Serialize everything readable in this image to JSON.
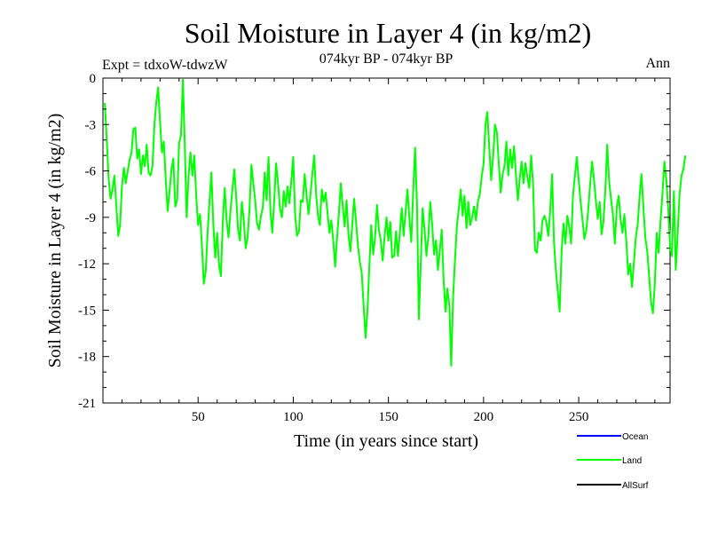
{
  "chart_data": {
    "type": "line",
    "title": "Soil Moisture in Layer 4 (in kg/m2)",
    "subtitle": "074kyr BP - 074kyr BP",
    "experiment": "Expt = tdxoW-tdwzW",
    "period": "Ann",
    "xlabel": "Time (in years since start)",
    "ylabel": "Soil Moisture in Layer 4 (in kg/m2)",
    "xlim": [
      0,
      298
    ],
    "ylim": [
      -21,
      0
    ],
    "xticks": [
      50,
      100,
      150,
      200,
      250
    ],
    "yticks": [
      0,
      -3,
      -6,
      -9,
      -12,
      -15,
      -18,
      -21
    ],
    "grid": false,
    "legend_position": "bottom-right",
    "legend": [
      {
        "name": "Ocean",
        "color": "#0000ff"
      },
      {
        "name": "Land",
        "color": "#00ff00"
      },
      {
        "name": "AllSurf",
        "color": "#000000"
      }
    ],
    "series": [
      {
        "name": "Land",
        "color": "#00ff00",
        "x_start": 1,
        "x_step": 1,
        "values": [
          -1.6,
          -4.0,
          -6.5,
          -7.8,
          -7.2,
          -6.3,
          -8.2,
          -10.2,
          -9.5,
          -7.0,
          -5.8,
          -6.8,
          -6.0,
          -5.3,
          -4.8,
          -3.3,
          -3.2,
          -5.2,
          -4.6,
          -6.2,
          -5.0,
          -5.7,
          -4.3,
          -6.1,
          -6.3,
          -5.7,
          -3.1,
          -1.6,
          -0.6,
          -2.8,
          -4.8,
          -4.1,
          -6.6,
          -8.6,
          -7.3,
          -5.9,
          -5.2,
          -8.3,
          -7.9,
          -4.2,
          -3.7,
          -0.1,
          -4.3,
          -9.0,
          -6.3,
          -4.8,
          -6.3,
          -5.0,
          -7.6,
          -9.5,
          -8.8,
          -10.8,
          -13.3,
          -12.5,
          -10.0,
          -7.9,
          -6.1,
          -9.5,
          -11.6,
          -10.0,
          -12.1,
          -12.8,
          -9.2,
          -7.1,
          -9.2,
          -10.3,
          -8.6,
          -7.2,
          -5.9,
          -7.6,
          -9.8,
          -10.5,
          -8.0,
          -9.2,
          -11.0,
          -10.3,
          -8.5,
          -5.6,
          -6.8,
          -7.9,
          -9.4,
          -9.8,
          -8.9,
          -8.4,
          -6.1,
          -7.9,
          -5.1,
          -8.6,
          -10.0,
          -7.9,
          -5.5,
          -6.8,
          -8.4,
          -9.0,
          -7.3,
          -8.3,
          -7.0,
          -8.1,
          -6.6,
          -5.1,
          -8.9,
          -10.2,
          -9.9,
          -7.9,
          -8.0,
          -6.2,
          -7.5,
          -8.8,
          -7.6,
          -6.2,
          -5.0,
          -7.5,
          -8.9,
          -9.5,
          -7.2,
          -8.0,
          -7.4,
          -8.7,
          -10.0,
          -9.2,
          -10.5,
          -12.2,
          -10.4,
          -8.7,
          -6.8,
          -8.3,
          -9.6,
          -7.9,
          -10.1,
          -11.2,
          -9.5,
          -7.8,
          -9.3,
          -10.8,
          -11.9,
          -12.6,
          -14.8,
          -16.8,
          -15.0,
          -12.1,
          -9.5,
          -11.4,
          -10.3,
          -8.2,
          -9.8,
          -10.5,
          -11.8,
          -10.2,
          -9.0,
          -10.5,
          -9.3,
          -11.6,
          -11.5,
          -9.9,
          -11.5,
          -10.0,
          -8.4,
          -10.2,
          -8.7,
          -7.2,
          -9.0,
          -10.6,
          -7.4,
          -4.5,
          -8.0,
          -15.6,
          -12.0,
          -8.4,
          -9.8,
          -11.5,
          -10.2,
          -8.0,
          -9.5,
          -11.4,
          -10.5,
          -12.4,
          -11.2,
          -9.8,
          -13.0,
          -15.1,
          -13.6,
          -14.7,
          -18.6,
          -14.1,
          -11.7,
          -9.6,
          -8.4,
          -7.2,
          -8.9,
          -7.6,
          -9.7,
          -8.0,
          -9.5,
          -9.0,
          -8.3,
          -9.2,
          -8.0,
          -7.5,
          -6.4,
          -5.5,
          -3.0,
          -2.2,
          -4.5,
          -6.6,
          -5.1,
          -3.0,
          -3.5,
          -5.5,
          -7.4,
          -6.2,
          -5.7,
          -4.1,
          -6.3,
          -4.6,
          -5.8,
          -4.4,
          -6.2,
          -7.9,
          -6.5,
          -5.4,
          -6.8,
          -5.5,
          -6.4,
          -7.1,
          -5.0,
          -6.8,
          -11.1,
          -11.3,
          -10.0,
          -10.5,
          -9.2,
          -8.9,
          -9.3,
          -10.2,
          -8.6,
          -6.2,
          -10.6,
          -12.4,
          -13.8,
          -15.1,
          -11.2,
          -9.4,
          -10.7,
          -8.9,
          -9.6,
          -10.7,
          -7.6,
          -6.3,
          -5.1,
          -6.6,
          -8.0,
          -9.2,
          -10.4,
          -9.8,
          -8.5,
          -6.9,
          -5.4,
          -6.5,
          -7.9,
          -9.1,
          -8.0,
          -10.1,
          -9.3,
          -7.2,
          -4.3,
          -6.7,
          -7.8,
          -8.9,
          -10.7,
          -8.3,
          -7.6,
          -9.1,
          -10.0,
          -8.8,
          -10.5,
          -12.7,
          -12.0,
          -13.5,
          -11.9,
          -10.3,
          -9.5,
          -7.6,
          -6.2,
          -8.4,
          -10.3,
          -11.2,
          -12.8,
          -14.5,
          -15.2,
          -13.3,
          -10.0,
          -11.3,
          -9.2,
          -7.5,
          -5.4,
          -6.5,
          -8.4,
          -10.9,
          -11.5,
          -7.3,
          -12.4,
          -10.0,
          -7.5,
          -6.3,
          -5.9,
          -5.0
        ]
      }
    ]
  }
}
